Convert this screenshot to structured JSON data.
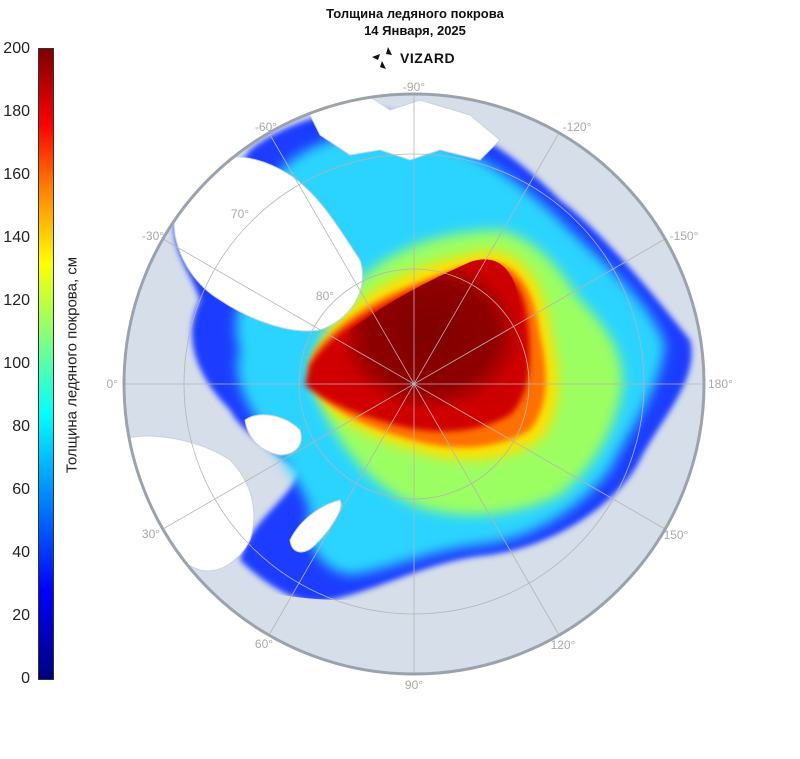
{
  "title": "Толщина ледяного покрова",
  "subtitle": "14 Января, 2025",
  "logo_text": "VIZARD",
  "colorbar": {
    "label": "Толщина ледяного покрова, см",
    "ticks": [
      "200",
      "180",
      "160",
      "140",
      "120",
      "100",
      "80",
      "60",
      "40",
      "20",
      "0"
    ],
    "min": 0,
    "max": 200
  },
  "grid_labels": {
    "lon": {
      "n90w": "-90°",
      "n120w": "-120°",
      "n150w": "-150°",
      "d180": "180°",
      "n150e": "150°",
      "n120e": "120°",
      "n90e": "90°",
      "n60e": "60°",
      "n30e": "30°",
      "d0": "0°",
      "n30w": "-30°",
      "n60w": "-60°"
    },
    "lat": {
      "l70": "70°",
      "l80": "80°"
    }
  },
  "colors": {
    "ocean": "#d6deea",
    "land": "#ffffff",
    "grid": "#b4b4b4",
    "ice_thick": "#7f0000",
    "ice_thin": "#0000ff"
  }
}
